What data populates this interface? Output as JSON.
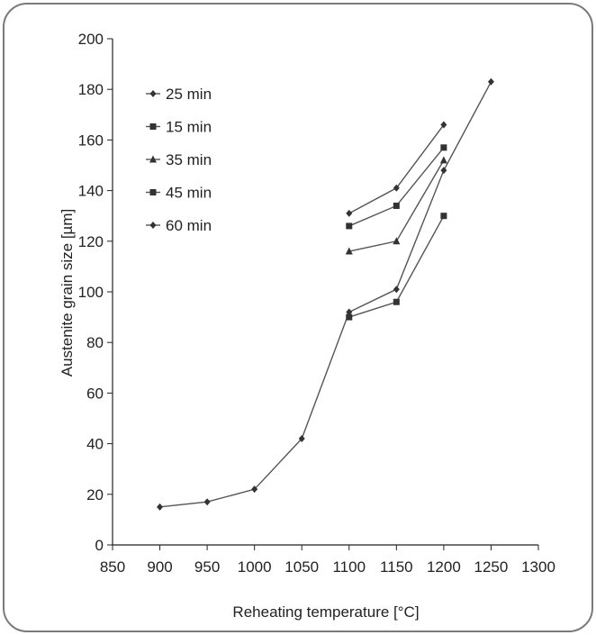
{
  "chart_data": {
    "type": "line",
    "title": "",
    "xlabel": "Reheating temperature [°C]",
    "ylabel": "Austenite grain size [µm]",
    "xlim": [
      850,
      1300
    ],
    "ylim": [
      0,
      200
    ],
    "x_ticks": [
      "850",
      "900",
      "950",
      "1000",
      "1050",
      "1100",
      "1150",
      "1200",
      "1250",
      "1300"
    ],
    "y_ticks": [
      "0",
      "20",
      "40",
      "60",
      "80",
      "100",
      "120",
      "140",
      "160",
      "180",
      "200"
    ],
    "grid": false,
    "legend_placement": "top-left",
    "series": [
      {
        "name": "25 min",
        "marker": "diamond",
        "points": [
          [
            900,
            15
          ],
          [
            950,
            17
          ],
          [
            1000,
            22
          ],
          [
            1050,
            42
          ],
          [
            1100,
            92
          ],
          [
            1150,
            101
          ],
          [
            1200,
            148
          ],
          [
            1250,
            183
          ]
        ]
      },
      {
        "name": "15 min",
        "marker": "square",
        "points": [
          [
            1100,
            90
          ],
          [
            1150,
            96
          ],
          [
            1200,
            130
          ]
        ]
      },
      {
        "name": "35 min",
        "marker": "triangle",
        "points": [
          [
            1100,
            116
          ],
          [
            1150,
            120
          ],
          [
            1200,
            152
          ]
        ]
      },
      {
        "name": "45 min",
        "marker": "square",
        "points": [
          [
            1100,
            126
          ],
          [
            1150,
            134
          ],
          [
            1200,
            157
          ]
        ]
      },
      {
        "name": "60 min",
        "marker": "diamond",
        "points": [
          [
            1100,
            131
          ],
          [
            1150,
            141
          ],
          [
            1200,
            166
          ]
        ]
      }
    ],
    "colors": {
      "line": "#555555",
      "marker": "#333333",
      "frame": "#222222"
    }
  }
}
